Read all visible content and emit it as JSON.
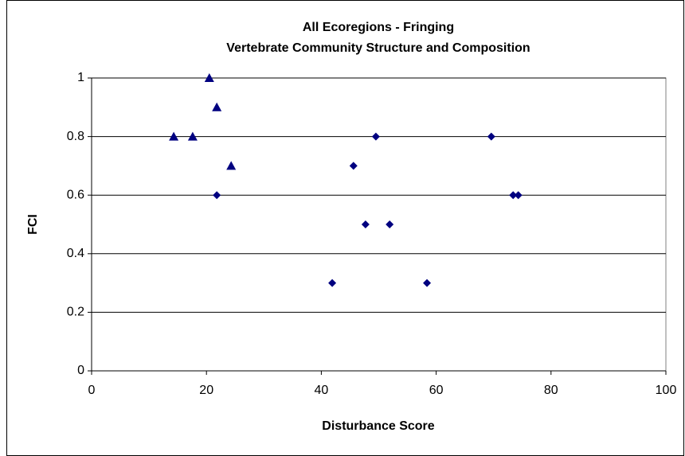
{
  "chart_data": {
    "type": "scatter",
    "title": [
      "All Ecoregions - Fringing",
      "Vertebrate Community Structure and Composition"
    ],
    "xlabel": "Disturbance Score",
    "ylabel": "FCI",
    "series": [
      {
        "marker": "triangle",
        "color": "#000080",
        "x": [
          14.3,
          17.6,
          20.5,
          21.8,
          24.3
        ],
        "values": [
          0.8,
          0.8,
          1.0,
          0.9,
          0.7
        ]
      },
      {
        "marker": "diamond",
        "color": "#000080",
        "x": [
          21.8,
          41.9,
          45.6,
          47.7,
          49.5,
          51.9,
          58.4,
          69.6,
          73.4,
          74.3
        ],
        "values": [
          0.6,
          0.3,
          0.7,
          0.5,
          0.8,
          0.5,
          0.3,
          0.8,
          0.6,
          0.6
        ]
      }
    ],
    "xlim": [
      0,
      100
    ],
    "xticks": [
      0,
      20,
      40,
      60,
      80,
      100
    ],
    "ylim": [
      0,
      1
    ],
    "yticks": [
      0,
      0.2,
      0.4,
      0.6,
      0.8,
      1
    ],
    "grid": true
  }
}
